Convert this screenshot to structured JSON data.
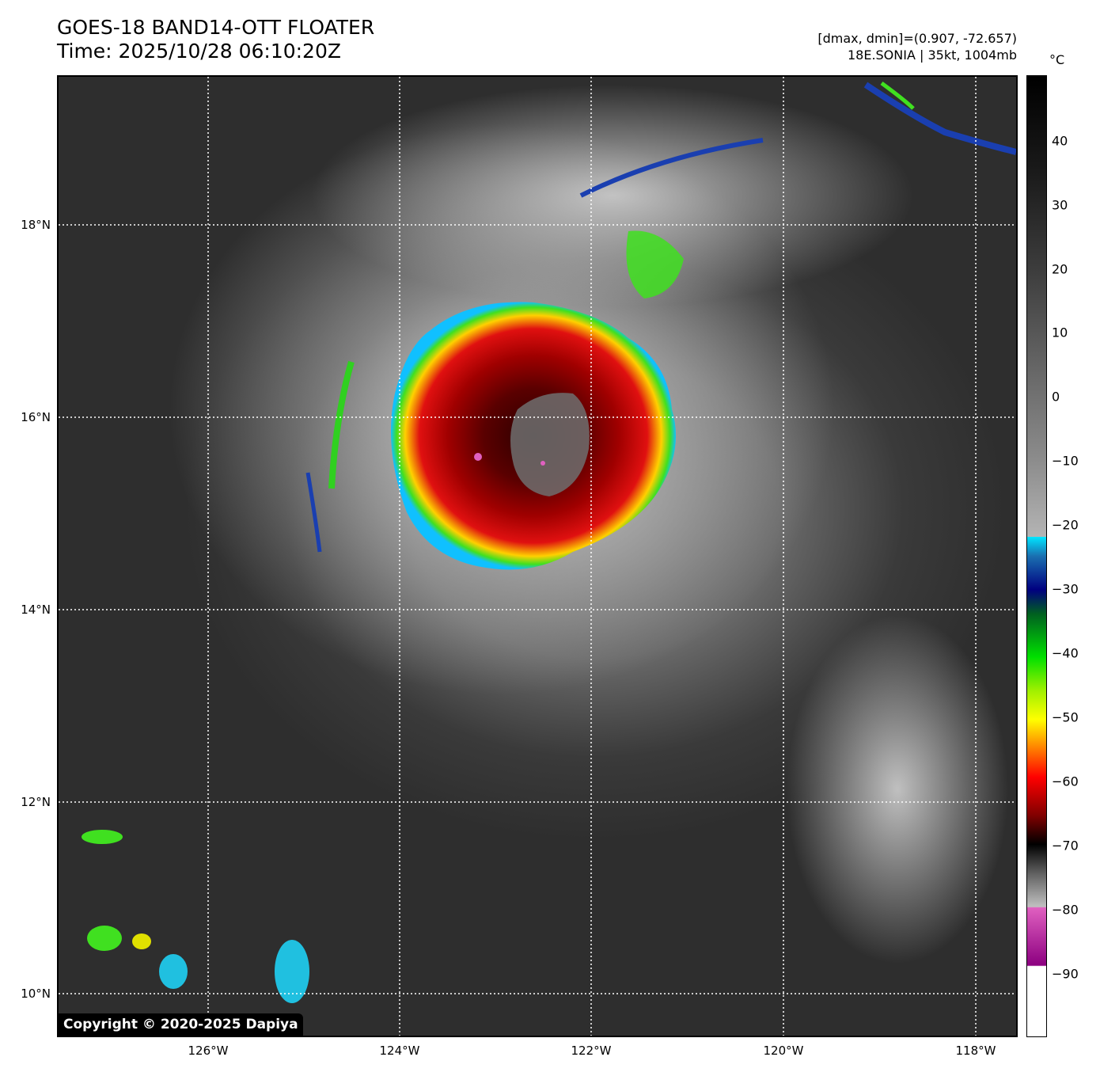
{
  "title": {
    "line1": "GOES-18 BAND14-OTT FLOATER",
    "line2": "Time: 2025/10/28 06:10:20Z"
  },
  "info": {
    "line1": "[dmax, dmin]=(0.907, -72.657)",
    "line2": "18E.SONIA | 35kt, 1004mb"
  },
  "copyright": "Copyright © 2020-2025 Dapiya",
  "lat_labels": [
    "18°N",
    "16°N",
    "14°N",
    "12°N",
    "10°N"
  ],
  "lon_labels": [
    "126°W",
    "124°W",
    "122°W",
    "120°W",
    "118°W"
  ],
  "colorbar": {
    "unit": "°C",
    "ticks": [
      "40",
      "30",
      "20",
      "10",
      "0",
      "−10",
      "−20",
      "−30",
      "−40",
      "−50",
      "−60",
      "−70",
      "−80",
      "−90"
    ]
  },
  "colors": {
    "cold_top": "#c00000",
    "core": "#5a0000",
    "ring_green": "#33e014",
    "ring_yellow": "#f4f000",
    "ring_blue": "#1a3fb0",
    "ring_cyan": "#14e0ff",
    "overshoot": "#e060c0"
  }
}
